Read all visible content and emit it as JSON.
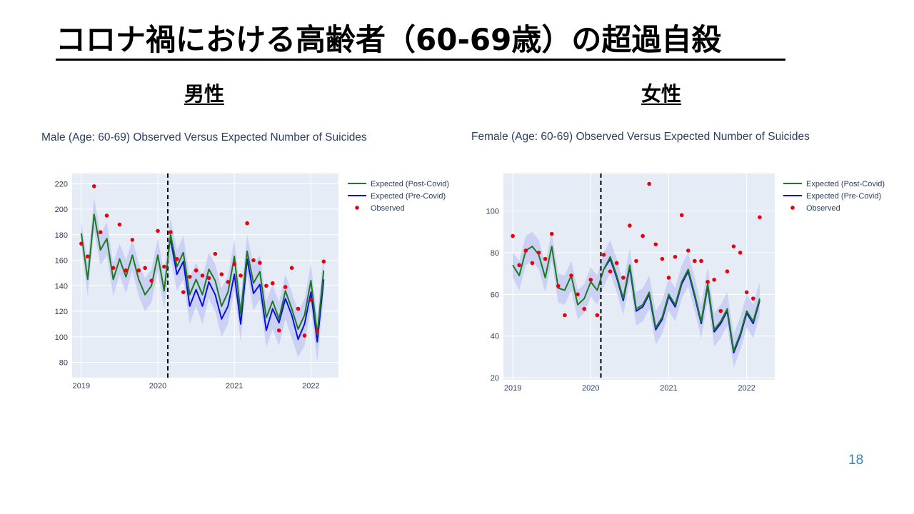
{
  "slide": {
    "title": "コロナ禍における高齢者（60-69歳）の超過自殺",
    "page_number": "18"
  },
  "sections": {
    "male": "男性",
    "female": "女性"
  },
  "colors": {
    "post_covid": "#1b7a1b",
    "pre_covid": "#0a10e0",
    "observed": "#e8000b",
    "band": "#c6cdf5",
    "plot_bg": "#e5ecf6",
    "grid": "#ffffff",
    "covid_line": "#000000"
  },
  "chart_data": [
    {
      "type": "line",
      "title": "Male (Age: 60-69) Observed Versus Expected Number of Suicides",
      "xlabel": "",
      "ylabel": "",
      "x_ticks": [
        "2019",
        "2020",
        "2021",
        "2022"
      ],
      "y_ticks": [
        80,
        100,
        120,
        140,
        160,
        180,
        200,
        220
      ],
      "xlim": [
        2018.88,
        2022.36
      ],
      "ylim": [
        68,
        228
      ],
      "grid": true,
      "legend_position": "right",
      "covid_start": 2020.13,
      "x": [
        2019.0,
        2019.083,
        2019.167,
        2019.25,
        2019.333,
        2019.417,
        2019.5,
        2019.583,
        2019.667,
        2019.75,
        2019.833,
        2019.917,
        2020.0,
        2020.083,
        2020.167,
        2020.25,
        2020.333,
        2020.417,
        2020.5,
        2020.583,
        2020.667,
        2020.75,
        2020.833,
        2020.917,
        2021.0,
        2021.083,
        2021.167,
        2021.25,
        2021.333,
        2021.417,
        2021.5,
        2021.583,
        2021.667,
        2021.75,
        2021.833,
        2021.917,
        2022.0,
        2022.083,
        2022.167
      ],
      "series": [
        {
          "name": "Expected (Post-Covid)",
          "values": [
            181,
            145,
            196,
            168,
            177,
            145,
            161,
            147,
            164,
            145,
            133,
            140,
            164,
            136,
            180,
            155,
            166,
            133,
            145,
            133,
            153,
            144,
            124,
            135,
            163,
            118,
            167,
            142,
            151,
            115,
            128,
            114,
            136,
            122,
            106,
            117,
            144,
            102,
            152
          ]
        },
        {
          "name": "Expected (Pre-Covid)",
          "values": [
            null,
            null,
            null,
            null,
            null,
            null,
            null,
            null,
            null,
            null,
            null,
            null,
            null,
            null,
            176,
            149,
            159,
            124,
            137,
            124,
            143,
            133,
            114,
            124,
            149,
            110,
            161,
            134,
            141,
            105,
            122,
            111,
            130,
            117,
            98,
            110,
            135,
            96,
            145
          ]
        },
        {
          "name": "Observed",
          "values": [
            173,
            163,
            218,
            182,
            195,
            154,
            188,
            152,
            176,
            152,
            154,
            144,
            183,
            155,
            182,
            161,
            135,
            147,
            152,
            148,
            146,
            165,
            149,
            143,
            157,
            148,
            189,
            160,
            158,
            140,
            142,
            105,
            139,
            154,
            122,
            101,
            129,
            105,
            159
          ]
        }
      ],
      "band": {
        "upper": [
          190,
          158,
          209,
          180,
          190,
          158,
          173,
          160,
          176,
          158,
          146,
          153,
          177,
          150,
          193,
          168,
          179,
          147,
          158,
          147,
          166,
          157,
          138,
          148,
          176,
          131,
          180,
          156,
          164,
          128,
          141,
          127,
          149,
          135,
          120,
          130,
          157,
          116,
          165
        ],
        "lower": [
          170,
          132,
          183,
          156,
          164,
          132,
          149,
          134,
          152,
          132,
          120,
          127,
          151,
          122,
          162,
          136,
          145,
          110,
          124,
          110,
          130,
          120,
          100,
          110,
          136,
          96,
          149,
          121,
          129,
          92,
          106,
          93,
          114,
          99,
          84,
          93,
          122,
          80,
          132
        ]
      }
    },
    {
      "type": "line",
      "title": "Female (Age: 60-69) Observed Versus Expected Number of Suicides",
      "xlabel": "",
      "ylabel": "",
      "x_ticks": [
        "2019",
        "2020",
        "2021",
        "2022"
      ],
      "y_ticks": [
        20,
        40,
        60,
        80,
        100
      ],
      "xlim": [
        2018.88,
        2022.36
      ],
      "ylim": [
        19,
        118
      ],
      "grid": true,
      "legend_position": "right",
      "covid_start": 2020.13,
      "x": [
        2019.0,
        2019.083,
        2019.167,
        2019.25,
        2019.333,
        2019.417,
        2019.5,
        2019.583,
        2019.667,
        2019.75,
        2019.833,
        2019.917,
        2020.0,
        2020.083,
        2020.167,
        2020.25,
        2020.333,
        2020.417,
        2020.5,
        2020.583,
        2020.667,
        2020.75,
        2020.833,
        2020.917,
        2021.0,
        2021.083,
        2021.167,
        2021.25,
        2021.333,
        2021.417,
        2021.5,
        2021.583,
        2021.667,
        2021.75,
        2021.833,
        2021.917,
        2022.0,
        2022.083,
        2022.167
      ],
      "series": [
        {
          "name": "Expected (Post-Covid)",
          "values": [
            74,
            69,
            81,
            83,
            79,
            68,
            83,
            63,
            62,
            69,
            55,
            58,
            66,
            62,
            72,
            78,
            69,
            58,
            74,
            53,
            55,
            61,
            44,
            49,
            60,
            55,
            66,
            72,
            60,
            47,
            65,
            43,
            47,
            53,
            33,
            41,
            52,
            47,
            58
          ]
        },
        {
          "name": "Expected (Pre-Covid)",
          "values": [
            null,
            null,
            null,
            null,
            null,
            null,
            null,
            null,
            null,
            null,
            null,
            null,
            null,
            null,
            72,
            77,
            68,
            57,
            73,
            52,
            54,
            60,
            43,
            48,
            59,
            54,
            65,
            71,
            59,
            46,
            64,
            42,
            46,
            52,
            32,
            40,
            51,
            46,
            57
          ]
        },
        {
          "name": "Observed",
          "values": [
            88,
            74,
            81,
            75,
            80,
            77,
            89,
            64,
            50,
            69,
            60,
            53,
            67,
            50,
            79,
            71,
            75,
            68,
            93,
            76,
            88,
            113,
            84,
            77,
            68,
            78,
            98,
            81,
            76,
            76,
            66,
            67,
            52,
            71,
            83,
            80,
            61,
            58,
            97
          ]
        }
      ],
      "band": {
        "upper": [
          80,
          76,
          88,
          90,
          86,
          75,
          90,
          70,
          69,
          76,
          62,
          65,
          73,
          69,
          80,
          86,
          77,
          66,
          82,
          61,
          63,
          69,
          52,
          57,
          68,
          63,
          74,
          80,
          68,
          55,
          73,
          51,
          55,
          61,
          41,
          49,
          60,
          55,
          66
        ],
        "lower": [
          68,
          62,
          74,
          76,
          72,
          61,
          76,
          56,
          55,
          62,
          48,
          51,
          59,
          55,
          64,
          70,
          61,
          50,
          66,
          45,
          47,
          53,
          36,
          41,
          52,
          47,
          58,
          64,
          52,
          39,
          57,
          35,
          39,
          45,
          25,
          33,
          44,
          39,
          50
        ]
      }
    }
  ]
}
